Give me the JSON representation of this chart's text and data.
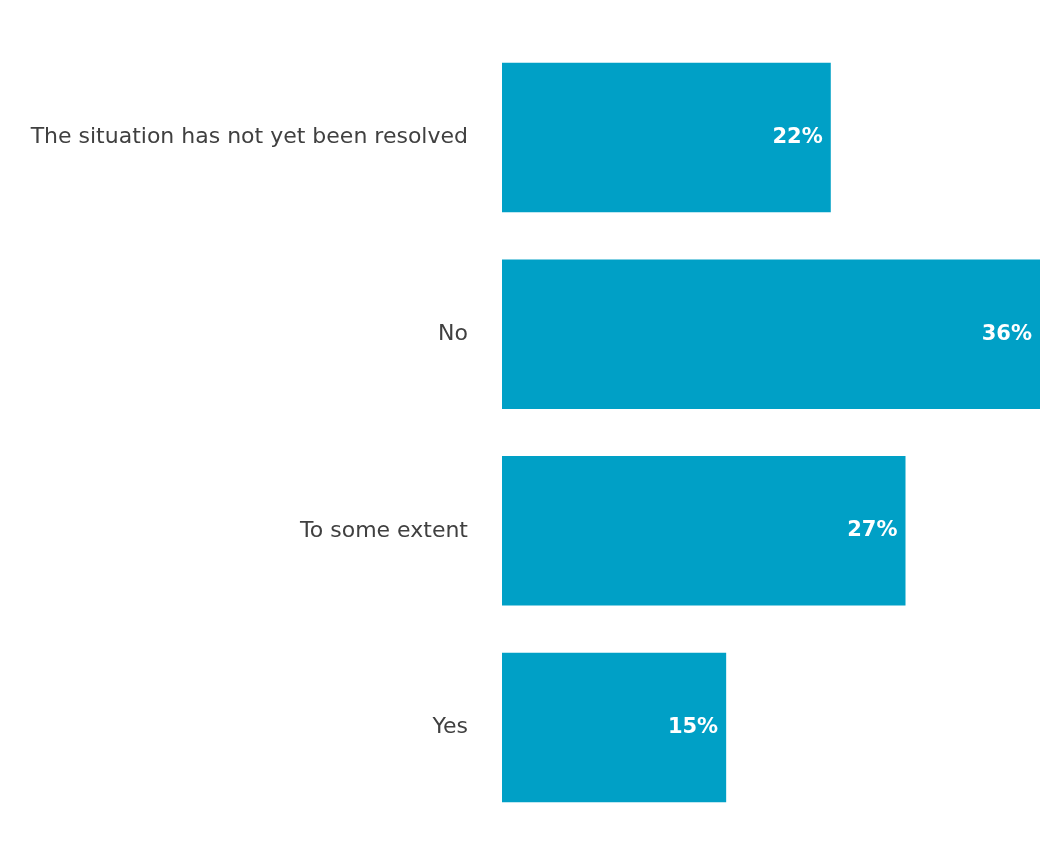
{
  "chart_data": {
    "type": "bar",
    "orientation": "horizontal",
    "categories": [
      "The situation has not yet been resolved",
      "No",
      "To some extent",
      "Yes"
    ],
    "values": [
      22,
      36,
      27,
      15
    ],
    "color": "#00a0c6",
    "value_labels": [
      "22%",
      "36%",
      "27%",
      "15%"
    ],
    "xlim": [
      0,
      36
    ],
    "legend": false
  }
}
